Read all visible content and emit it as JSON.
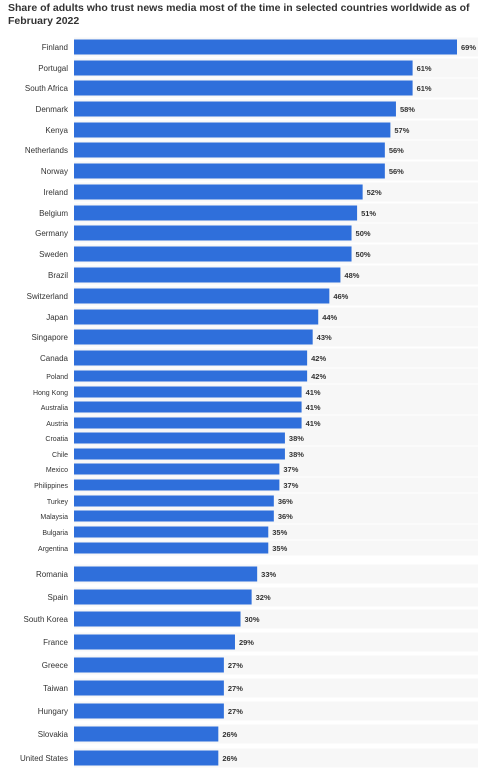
{
  "chart_data": {
    "type": "bar",
    "orientation": "horizontal",
    "title": "Share of adults who trust news media most of the time in selected countries worldwide as of February 2022",
    "bar_color": "#2f6fdb",
    "grid_color": "#e6e6e6",
    "categories": [
      "Finland",
      "Portugal",
      "South Africa",
      "Denmark",
      "Kenya",
      "Netherlands",
      "Norway",
      "Ireland",
      "Belgium",
      "Germany",
      "Sweden",
      "Brazil",
      "Switzerland",
      "Japan",
      "Singapore",
      "Canada",
      "Poland",
      "Hong Kong",
      "Australia",
      "Austria",
      "Croatia",
      "Chile",
      "Mexico",
      "Philippines",
      "Turkey",
      "Malaysia",
      "Bulgaria",
      "Argentina",
      "Romania",
      "Spain",
      "South Korea",
      "France",
      "Greece",
      "Taiwan",
      "Hungary",
      "Slovakia",
      "United States"
    ],
    "values": [
      69,
      61,
      61,
      58,
      57,
      56,
      56,
      52,
      51,
      50,
      50,
      48,
      46,
      44,
      43,
      42,
      42,
      41,
      41,
      41,
      38,
      38,
      37,
      37,
      36,
      36,
      35,
      35,
      33,
      32,
      30,
      29,
      27,
      27,
      27,
      26,
      26
    ],
    "labels": [
      "69%",
      "61%",
      "61%",
      "58%",
      "57%",
      "56%",
      "56%",
      "52%",
      "51%",
      "50%",
      "50%",
      "48%",
      "46%",
      "44%",
      "43%",
      "42%",
      "42%",
      "41%",
      "41%",
      "41%",
      "38%",
      "38%",
      "37%",
      "37%",
      "36%",
      "36%",
      "35%",
      "35%",
      "33%",
      "32%",
      "30%",
      "29%",
      "27%",
      "27%",
      "27%",
      "26%",
      "26%"
    ],
    "xlim": [
      0,
      72
    ]
  }
}
